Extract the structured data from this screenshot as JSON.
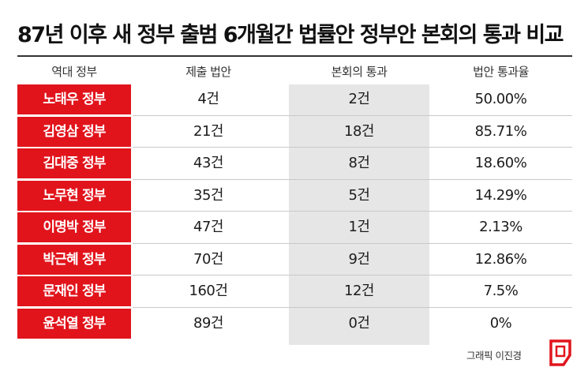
{
  "title": "87년 이후 새 정부 출범 6개월간 법률안 정부안 본회의 통과 비교",
  "headers": [
    "역대 정부",
    "제출 법안",
    "본회의 통과",
    "법안 통과율"
  ],
  "rows": [
    {
      "government": "노태우 정부",
      "submitted": "4건",
      "passed": "2건",
      "rate": "50.00%"
    },
    {
      "government": "김영삼 정부",
      "submitted": "21건",
      "passed": "18건",
      "rate": "85.71%"
    },
    {
      "government": "김대중 정부",
      "submitted": "43건",
      "passed": "8건",
      "rate": "18.60%"
    },
    {
      "government": "노무현 정부",
      "submitted": "35건",
      "passed": "5건",
      "rate": "14.29%"
    },
    {
      "government": "이명박 정부",
      "submitted": "47건",
      "passed": "1건",
      "rate": "2.13%"
    },
    {
      "government": "박근혜 정부",
      "submitted": "70건",
      "passed": "9건",
      "rate": "12.86%"
    },
    {
      "government": "문재인 정부",
      "submitted": "160건",
      "passed": "12건",
      "rate": "7.5%"
    },
    {
      "government": "윤석열 정부",
      "submitted": "89건",
      "passed": "0건",
      "rate": "0%"
    }
  ],
  "credit": "그래픽 이진경",
  "colors": {
    "accent": "#e1141c",
    "shaded_column": "#e6e6e6",
    "text": "#1c1c1c"
  },
  "logo_icon": "publisher-logo-icon"
}
